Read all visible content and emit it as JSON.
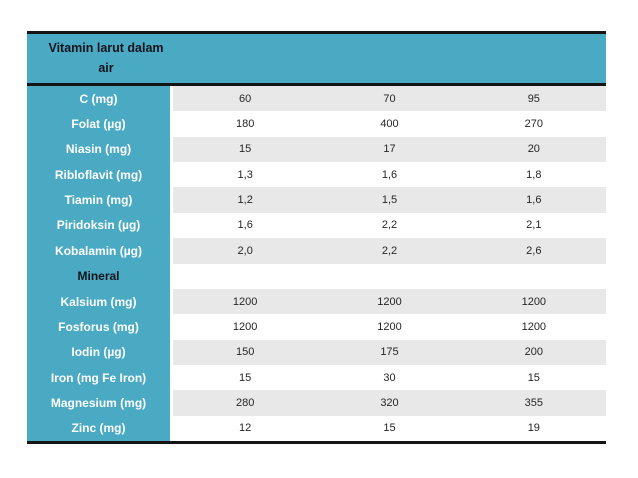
{
  "page": {
    "background_color": "#ffffff"
  },
  "table": {
    "title_line1": "Vitamin larut dalam",
    "title_line2": "air",
    "colors": {
      "header_fill": "#4aa9c3",
      "label_column_fill": "#4aa9c3",
      "stripe_fill": "#e8e8e8",
      "border": "#141414",
      "label_text": "#ffffff",
      "section_label_text": "#14141a",
      "value_text": "#262626"
    },
    "rows": [
      {
        "label": "C (mg)",
        "values": [
          "60",
          "70",
          "95"
        ]
      },
      {
        "label": "Folat (µg)",
        "values": [
          "180",
          "400",
          "270"
        ]
      },
      {
        "label": "Niasin (mg)",
        "values": [
          "15",
          "17",
          "20"
        ]
      },
      {
        "label": "Ribloflavit (mg)",
        "values": [
          "1,3",
          "1,6",
          "1,8"
        ]
      },
      {
        "label": "Tiamin (mg)",
        "values": [
          "1,2",
          "1,5",
          "1,6"
        ]
      },
      {
        "label": "Piridoksin (µg)",
        "values": [
          "1,6",
          "2,2",
          "2,1"
        ]
      },
      {
        "label": "Kobalamin (µg)",
        "values": [
          "2,0",
          "2,2",
          "2,6"
        ]
      },
      {
        "label": "Mineral",
        "values": [
          "",
          "",
          ""
        ]
      },
      {
        "label": "Kalsium (mg)",
        "values": [
          "1200",
          "1200",
          "1200"
        ]
      },
      {
        "label": "Fosforus (mg)",
        "values": [
          "1200",
          "1200",
          "1200"
        ]
      },
      {
        "label": "Iodin (µg)",
        "values": [
          "150",
          "175",
          "200"
        ]
      },
      {
        "label": "Iron (mg Fe Iron)",
        "values": [
          "15",
          "30",
          "15"
        ]
      },
      {
        "label": "Magnesium (mg)",
        "values": [
          "280",
          "320",
          "355"
        ]
      },
      {
        "label": "Zinc (mg)",
        "values": [
          "12",
          "15",
          "19"
        ]
      }
    ]
  }
}
